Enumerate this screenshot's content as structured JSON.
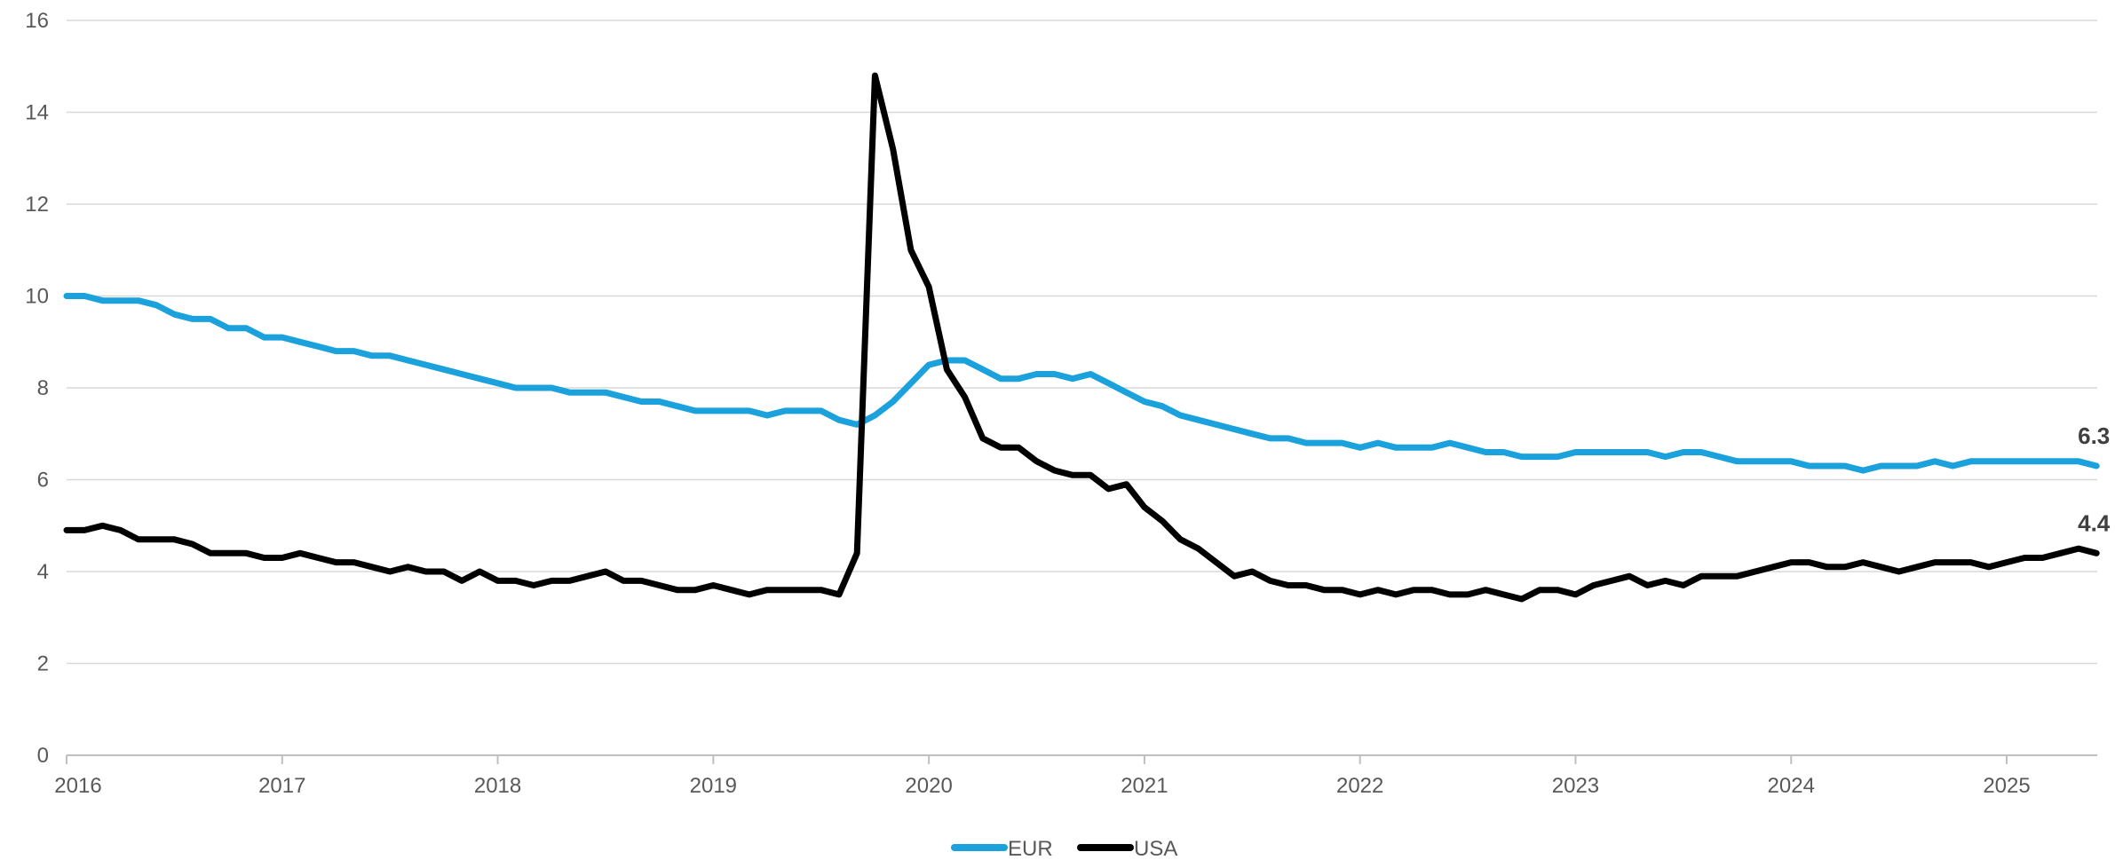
{
  "chart_data": {
    "type": "line",
    "title": "",
    "xlabel": "",
    "ylabel": "",
    "ylim": [
      0,
      16
    ],
    "y_ticks": [
      0,
      2,
      4,
      6,
      8,
      10,
      12,
      14,
      16
    ],
    "x_range": [
      2016.0,
      2025.42
    ],
    "x_ticks": [
      "2016",
      "2017",
      "2018",
      "2019",
      "2020",
      "2021",
      "2022",
      "2023",
      "2024",
      "2025"
    ],
    "grid": "horizontal",
    "legend_position": "bottom-center",
    "colors": {
      "EUR": "#1ba1dc",
      "USA": "#000000"
    },
    "end_labels": {
      "EUR": "6.3",
      "USA": "4.4"
    },
    "x_start": "2016-01",
    "x_step_months": 1,
    "series": [
      {
        "name": "EUR",
        "values": [
          10.0,
          10.0,
          9.9,
          9.9,
          9.9,
          9.8,
          9.6,
          9.5,
          9.5,
          9.3,
          9.3,
          9.1,
          9.1,
          9.0,
          8.9,
          8.8,
          8.8,
          8.7,
          8.7,
          8.6,
          8.5,
          8.4,
          8.3,
          8.2,
          8.1,
          8.0,
          8.0,
          8.0,
          7.9,
          7.9,
          7.9,
          7.8,
          7.7,
          7.7,
          7.6,
          7.5,
          7.5,
          7.5,
          7.5,
          7.4,
          7.5,
          7.5,
          7.5,
          7.3,
          7.2,
          7.4,
          7.7,
          8.1,
          8.5,
          8.6,
          8.6,
          8.4,
          8.2,
          8.2,
          8.3,
          8.3,
          8.2,
          8.3,
          8.1,
          7.9,
          7.7,
          7.6,
          7.4,
          7.3,
          7.2,
          7.1,
          7.0,
          6.9,
          6.9,
          6.8,
          6.8,
          6.8,
          6.7,
          6.8,
          6.7,
          6.7,
          6.7,
          6.8,
          6.7,
          6.6,
          6.6,
          6.5,
          6.5,
          6.5,
          6.6,
          6.6,
          6.6,
          6.6,
          6.6,
          6.5,
          6.6,
          6.6,
          6.5,
          6.4,
          6.4,
          6.4,
          6.4,
          6.3,
          6.3,
          6.3,
          6.2,
          6.3,
          6.3,
          6.3,
          6.4,
          6.3,
          6.4,
          6.4,
          6.4,
          6.4,
          6.4,
          6.4,
          6.4,
          6.3
        ]
      },
      {
        "name": "USA",
        "values": [
          4.9,
          4.9,
          5.0,
          4.9,
          4.7,
          4.7,
          4.7,
          4.6,
          4.4,
          4.4,
          4.4,
          4.3,
          4.3,
          4.4,
          4.3,
          4.2,
          4.2,
          4.1,
          4.0,
          4.1,
          4.0,
          4.0,
          3.8,
          4.0,
          3.8,
          3.8,
          3.7,
          3.8,
          3.8,
          3.9,
          4.0,
          3.8,
          3.8,
          3.7,
          3.6,
          3.6,
          3.7,
          3.6,
          3.5,
          3.6,
          3.6,
          3.6,
          3.6,
          3.5,
          4.4,
          14.8,
          13.2,
          11.0,
          10.2,
          8.4,
          7.8,
          6.9,
          6.7,
          6.7,
          6.4,
          6.2,
          6.1,
          6.1,
          5.8,
          5.9,
          5.4,
          5.1,
          4.7,
          4.5,
          4.2,
          3.9,
          4.0,
          3.8,
          3.7,
          3.7,
          3.6,
          3.6,
          3.5,
          3.6,
          3.5,
          3.6,
          3.6,
          3.5,
          3.5,
          3.6,
          3.5,
          3.4,
          3.6,
          3.6,
          3.5,
          3.7,
          3.8,
          3.9,
          3.7,
          3.8,
          3.7,
          3.9,
          3.9,
          3.9,
          4.0,
          4.1,
          4.2,
          4.2,
          4.1,
          4.1,
          4.2,
          4.1,
          4.0,
          4.1,
          4.2,
          4.2,
          4.2,
          4.1,
          4.2,
          4.3,
          4.3,
          4.4,
          4.5,
          4.4
        ]
      }
    ]
  }
}
